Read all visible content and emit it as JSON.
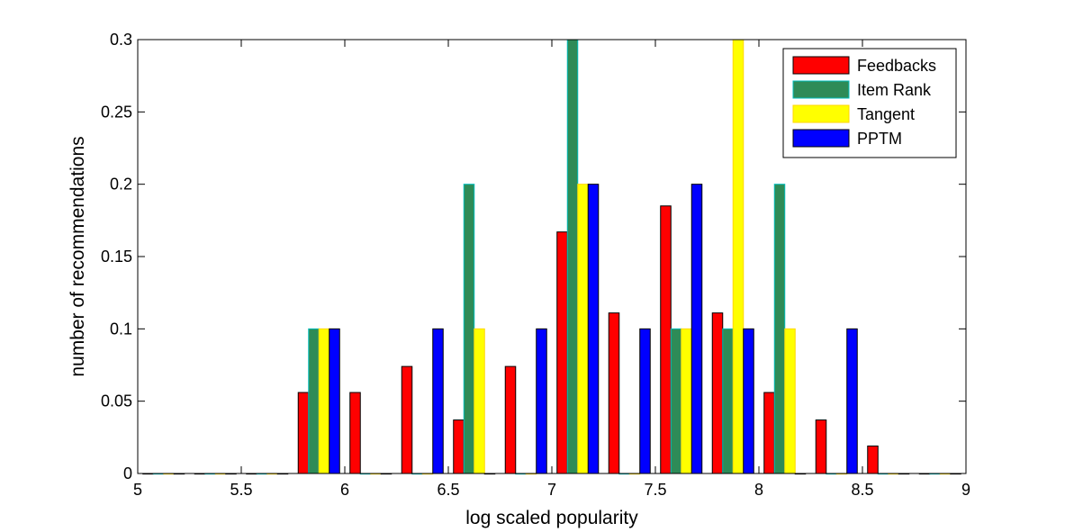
{
  "chart_data": {
    "type": "bar",
    "title": "",
    "xlabel": "log scaled popularity",
    "ylabel": "number of recommendations",
    "xlim": [
      5,
      9
    ],
    "ylim": [
      0,
      0.3
    ],
    "xticks": [
      "5",
      "5.5",
      "6",
      "6.5",
      "7",
      "7.5",
      "8",
      "8.5",
      "9"
    ],
    "yticks": [
      "0",
      "0.05",
      "0.1",
      "0.15",
      "0.2",
      "0.25",
      "0.3"
    ],
    "grid": false,
    "legend_position": "top-right",
    "bin_centers": [
      5.125,
      5.375,
      5.625,
      5.875,
      6.125,
      6.375,
      6.625,
      6.875,
      7.125,
      7.375,
      7.625,
      7.875,
      8.125,
      8.375,
      8.625,
      8.875
    ],
    "series": [
      {
        "name": "Feedbacks",
        "color": "#ff0000",
        "edge": "#000000",
        "values": [
          0,
          0,
          0,
          0.056,
          0.056,
          0.074,
          0.037,
          0.074,
          0.167,
          0.111,
          0.185,
          0.111,
          0.056,
          0.037,
          0.019,
          0
        ]
      },
      {
        "name": "Item Rank",
        "color": "#2e8b57",
        "edge": "#00bcbc",
        "values": [
          0,
          0,
          0,
          0.1,
          0,
          0,
          0.2,
          0,
          0.3,
          0,
          0.1,
          0.1,
          0.2,
          0,
          0,
          0
        ]
      },
      {
        "name": "Tangent",
        "color": "#ffff00",
        "edge": "#ffd700",
        "values": [
          0,
          0,
          0,
          0.1,
          0,
          0,
          0.1,
          0,
          0.2,
          0,
          0.1,
          0.3,
          0.1,
          0,
          0,
          0
        ]
      },
      {
        "name": "PPTM",
        "color": "#0000ff",
        "edge": "#000000",
        "values": [
          0,
          0,
          0,
          0.1,
          0,
          0.1,
          0,
          0.1,
          0.2,
          0.1,
          0.2,
          0.1,
          0,
          0.1,
          0,
          0
        ]
      }
    ]
  }
}
